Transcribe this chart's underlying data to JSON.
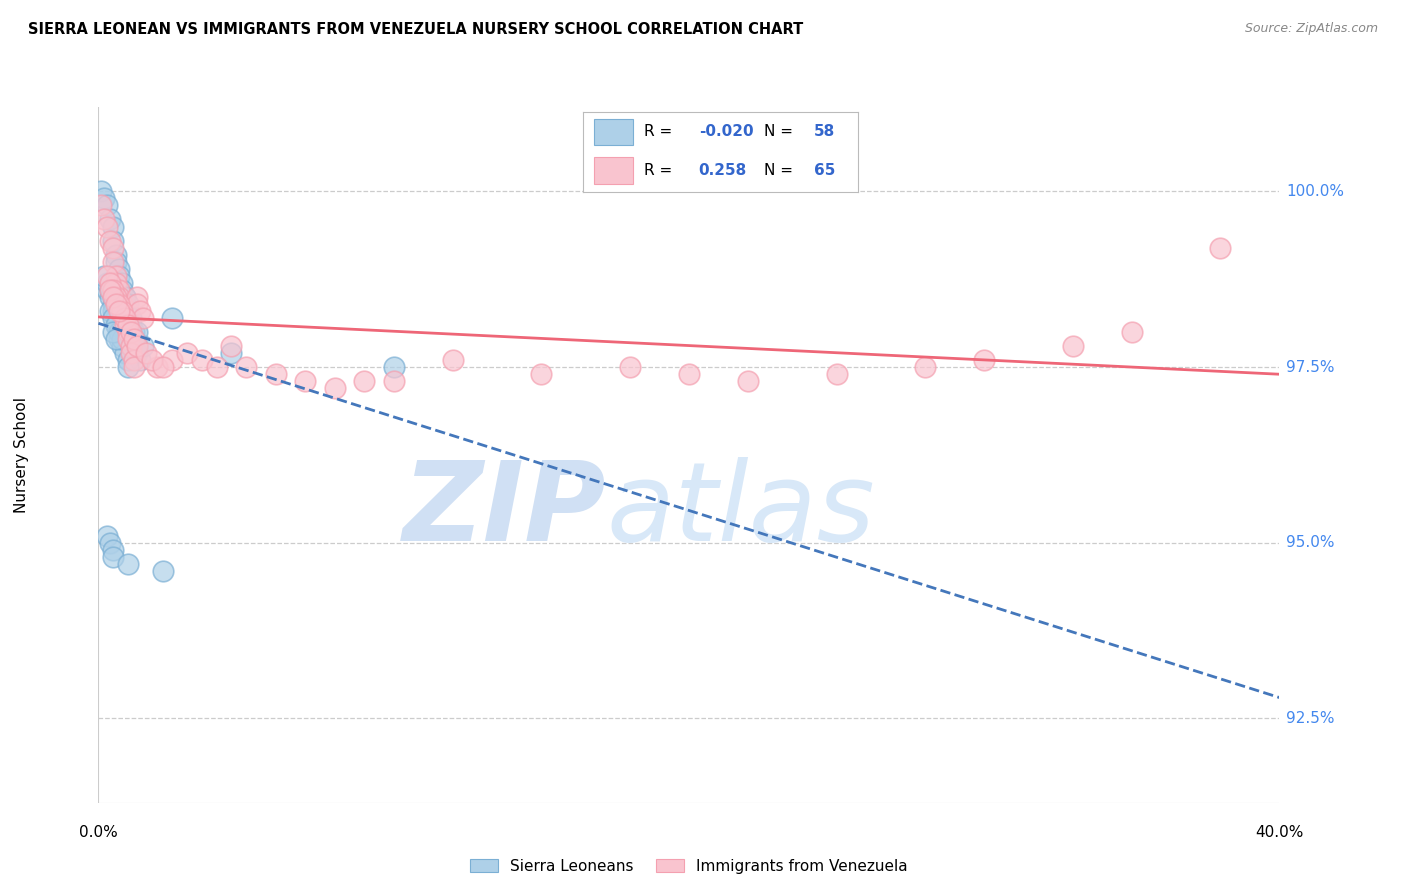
{
  "title": "SIERRA LEONEAN VS IMMIGRANTS FROM VENEZUELA NURSERY SCHOOL CORRELATION CHART",
  "source": "Source: ZipAtlas.com",
  "ylabel": "Nursery School",
  "ylabel_ticks": [
    "92.5%",
    "95.0%",
    "97.5%",
    "100.0%"
  ],
  "ylabel_tick_vals": [
    92.5,
    95.0,
    97.5,
    100.0
  ],
  "xmin": 0.0,
  "xmax": 40.0,
  "ymin": 91.3,
  "ymax": 101.2,
  "legend_r_blue": "-0.020",
  "legend_n_blue": "58",
  "legend_r_pink": "0.258",
  "legend_n_pink": "65",
  "blue_color": "#7BAFD4",
  "pink_color": "#F4A0B0",
  "blue_fill": "#AED0E8",
  "pink_fill": "#F9C4CF",
  "blue_line_color": "#4477BB",
  "pink_line_color": "#EE6677",
  "watermark_zip": "ZIP",
  "watermark_atlas": "atlas",
  "watermark_color": "#D0E0F4",
  "blue_scatter_x": [
    0.1,
    0.2,
    0.3,
    0.4,
    0.5,
    0.5,
    0.6,
    0.6,
    0.7,
    0.7,
    0.8,
    0.8,
    0.9,
    0.9,
    1.0,
    1.0,
    1.1,
    1.1,
    1.2,
    1.2,
    1.3,
    1.3,
    1.4,
    0.3,
    0.4,
    0.5,
    0.5,
    0.6,
    0.6,
    0.7,
    0.7,
    0.8,
    0.9,
    1.0,
    1.0,
    1.1,
    1.2,
    1.3,
    0.4,
    0.5,
    0.6,
    0.7,
    0.8,
    0.3,
    0.4,
    0.2,
    0.5,
    1.5,
    0.6,
    2.5,
    4.5,
    0.3,
    0.4,
    0.5,
    0.5,
    1.0,
    2.2,
    10.0
  ],
  "blue_scatter_y": [
    100.0,
    99.9,
    99.8,
    99.6,
    99.5,
    99.3,
    99.1,
    99.0,
    98.9,
    98.8,
    98.7,
    98.6,
    98.5,
    98.5,
    98.4,
    98.3,
    98.2,
    98.1,
    98.0,
    97.9,
    97.8,
    97.7,
    97.6,
    98.6,
    98.5,
    98.4,
    98.3,
    98.2,
    98.1,
    98.0,
    97.9,
    97.8,
    97.7,
    97.6,
    97.5,
    97.8,
    97.9,
    98.0,
    98.3,
    98.2,
    98.1,
    98.0,
    97.9,
    98.7,
    98.6,
    98.8,
    98.0,
    97.8,
    97.9,
    98.2,
    97.7,
    95.1,
    95.0,
    94.9,
    94.8,
    94.7,
    94.6,
    97.5
  ],
  "pink_scatter_x": [
    0.1,
    0.2,
    0.3,
    0.4,
    0.5,
    0.5,
    0.6,
    0.6,
    0.7,
    0.7,
    0.8,
    0.8,
    0.9,
    0.9,
    1.0,
    1.0,
    1.1,
    1.1,
    1.2,
    1.2,
    1.3,
    1.3,
    1.4,
    1.5,
    0.3,
    0.4,
    0.5,
    0.6,
    0.7,
    0.8,
    0.9,
    1.0,
    1.1,
    1.2,
    1.3,
    0.4,
    0.5,
    0.6,
    0.7,
    2.0,
    2.5,
    3.0,
    3.5,
    4.0,
    4.5,
    5.0,
    6.0,
    7.0,
    8.0,
    9.0,
    10.0,
    12.0,
    15.0,
    18.0,
    20.0,
    22.0,
    25.0,
    28.0,
    30.0,
    33.0,
    35.0,
    38.0,
    1.6,
    1.8,
    2.2
  ],
  "pink_scatter_y": [
    99.8,
    99.6,
    99.5,
    99.3,
    99.2,
    99.0,
    98.8,
    98.7,
    98.6,
    98.5,
    98.4,
    98.3,
    98.2,
    98.1,
    98.0,
    97.9,
    97.8,
    97.7,
    97.6,
    97.5,
    98.5,
    98.4,
    98.3,
    98.2,
    98.8,
    98.7,
    98.6,
    98.5,
    98.4,
    98.3,
    98.2,
    98.1,
    98.0,
    97.9,
    97.8,
    98.6,
    98.5,
    98.4,
    98.3,
    97.5,
    97.6,
    97.7,
    97.6,
    97.5,
    97.8,
    97.5,
    97.4,
    97.3,
    97.2,
    97.3,
    97.3,
    97.6,
    97.4,
    97.5,
    97.4,
    97.3,
    97.4,
    97.5,
    97.6,
    97.8,
    98.0,
    99.2,
    97.7,
    97.6,
    97.5
  ]
}
